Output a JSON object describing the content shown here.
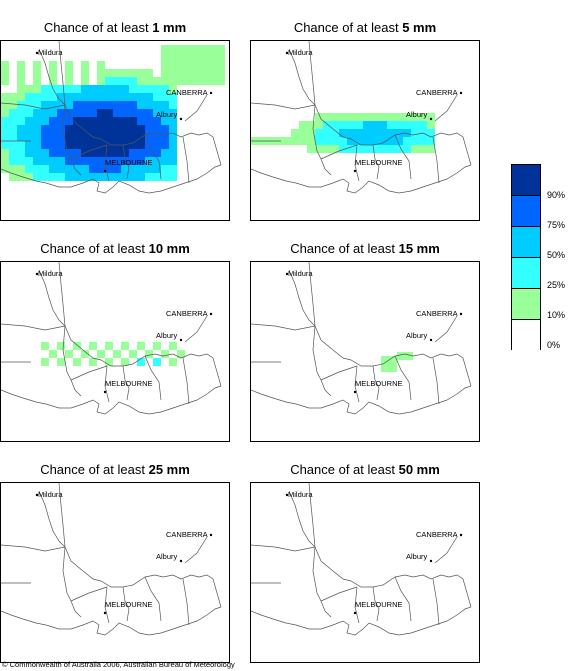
{
  "panels": [
    {
      "prefix": "Chance of at least ",
      "amount": "1 mm"
    },
    {
      "prefix": "Chance of at least ",
      "amount": "5 mm"
    },
    {
      "prefix": "Chance of at least ",
      "amount": "10 mm"
    },
    {
      "prefix": "Chance of at least ",
      "amount": "15 mm"
    },
    {
      "prefix": "Chance of at least ",
      "amount": "25 mm"
    },
    {
      "prefix": "Chance of at least ",
      "amount": "50 mm"
    }
  ],
  "cities": {
    "mildura": "Mildura",
    "canberra": "CANBERRA",
    "albury": "Albury",
    "melbourne": "MELBOURNE"
  },
  "legend": {
    "colors": [
      "#003399",
      "#0066ff",
      "#00ccff",
      "#33ffff",
      "#99ff99",
      "#ffffff"
    ],
    "labels": [
      "90%",
      "75%",
      "50%",
      "25%",
      "10%",
      "0%"
    ]
  },
  "footer": "© Commonwealth of Australia 2006, Australian Bureau of Meteorology"
}
